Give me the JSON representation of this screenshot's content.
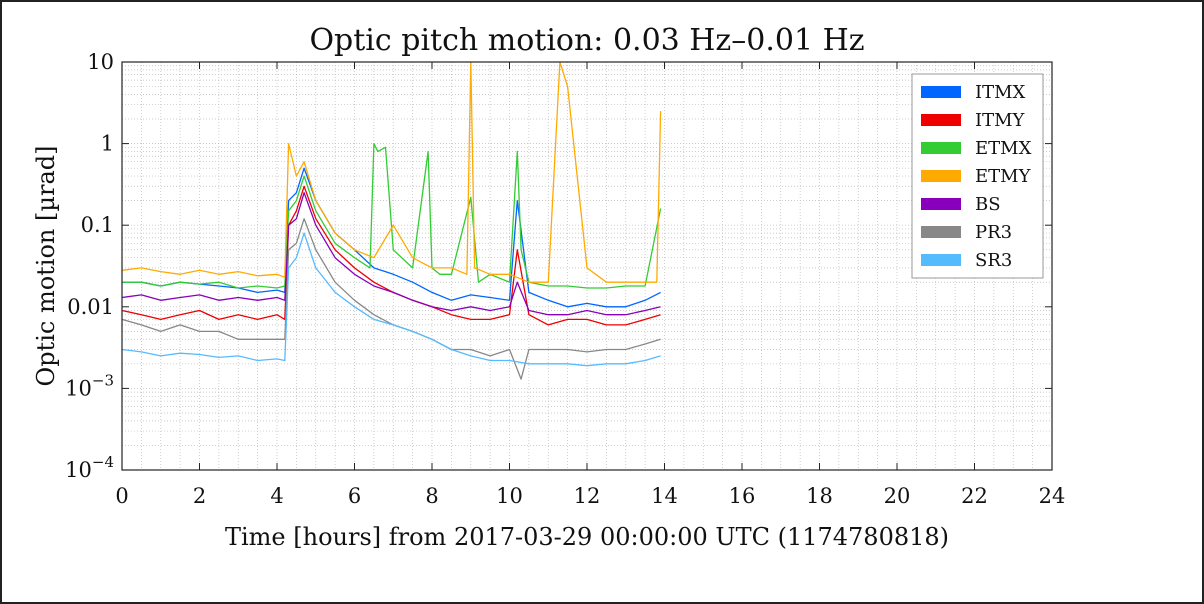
{
  "chart_data": {
    "type": "line",
    "title": "Optic pitch motion: 0.03 Hz–0.01 Hz",
    "xlabel": "Time [hours] from 2017-03-29 00:00:00 UTC (1174780818)",
    "ylabel": "Optic motion [µrad]",
    "x_scale": "linear",
    "y_scale": "log",
    "xlim": [
      0,
      24
    ],
    "ylim": [
      0.0001,
      10
    ],
    "x_ticks": [
      0,
      2,
      4,
      6,
      8,
      10,
      12,
      14,
      16,
      18,
      20,
      22,
      24
    ],
    "x_tick_labels": [
      "0",
      "2",
      "4",
      "6",
      "8",
      "10",
      "12",
      "14",
      "16",
      "18",
      "20",
      "22",
      "24"
    ],
    "y_ticks": [
      0.0001,
      0.001,
      0.01,
      0.1,
      1,
      10
    ],
    "y_tick_labels": [
      {
        "base": "10",
        "exp": "−4"
      },
      {
        "base": "10",
        "exp": "−3"
      },
      {
        "base": "0.01",
        "exp": ""
      },
      {
        "base": "0.1",
        "exp": ""
      },
      {
        "base": "1",
        "exp": ""
      },
      {
        "base": "10",
        "exp": ""
      }
    ],
    "grid": true,
    "legend_position": "top-right",
    "series": [
      {
        "name": "ITMX",
        "color": "#0066ff",
        "x": [
          0,
          0.5,
          1,
          1.5,
          2,
          2.5,
          3,
          3.5,
          4,
          4.2,
          4.3,
          4.5,
          4.7,
          5,
          5.5,
          6,
          6.5,
          7,
          7.5,
          8,
          8.5,
          9,
          9.5,
          10,
          10.2,
          10.5,
          11,
          11.5,
          12,
          12.5,
          13,
          13.5,
          13.9
        ],
        "y": [
          0.02,
          0.02,
          0.018,
          0.02,
          0.019,
          0.018,
          0.017,
          0.015,
          0.016,
          0.015,
          0.2,
          0.25,
          0.5,
          0.2,
          0.08,
          0.05,
          0.03,
          0.025,
          0.02,
          0.015,
          0.012,
          0.014,
          0.013,
          0.012,
          0.2,
          0.015,
          0.012,
          0.01,
          0.011,
          0.01,
          0.01,
          0.012,
          0.015
        ]
      },
      {
        "name": "ITMY",
        "color": "#ee0000",
        "x": [
          0,
          0.5,
          1,
          1.5,
          2,
          2.5,
          3,
          3.5,
          4,
          4.2,
          4.3,
          4.5,
          4.7,
          5,
          5.5,
          6,
          6.5,
          7,
          7.5,
          8,
          8.5,
          9,
          9.5,
          10,
          10.2,
          10.5,
          11,
          11.5,
          12,
          12.5,
          13,
          13.5,
          13.9
        ],
        "y": [
          0.009,
          0.008,
          0.007,
          0.008,
          0.009,
          0.007,
          0.008,
          0.007,
          0.008,
          0.007,
          0.1,
          0.15,
          0.3,
          0.12,
          0.05,
          0.03,
          0.02,
          0.015,
          0.012,
          0.01,
          0.008,
          0.007,
          0.007,
          0.008,
          0.05,
          0.008,
          0.006,
          0.007,
          0.007,
          0.006,
          0.006,
          0.007,
          0.008
        ]
      },
      {
        "name": "ETMX",
        "color": "#33cc33",
        "x": [
          0,
          0.5,
          1,
          1.5,
          2,
          2.5,
          3,
          3.5,
          4,
          4.2,
          4.3,
          4.5,
          4.7,
          5,
          5.5,
          6,
          6.4,
          6.5,
          6.6,
          6.8,
          7,
          7.5,
          7.9,
          8,
          8.2,
          8.5,
          9,
          9.2,
          9.5,
          10,
          10.2,
          10.3,
          10.5,
          11,
          11.5,
          12,
          12.5,
          13,
          13.5,
          13.9
        ],
        "y": [
          0.02,
          0.02,
          0.018,
          0.02,
          0.019,
          0.02,
          0.017,
          0.018,
          0.017,
          0.018,
          0.15,
          0.2,
          0.4,
          0.15,
          0.06,
          0.04,
          0.03,
          1,
          0.8,
          0.9,
          0.05,
          0.03,
          0.8,
          0.03,
          0.025,
          0.025,
          0.22,
          0.02,
          0.025,
          0.02,
          0.8,
          0.05,
          0.02,
          0.018,
          0.018,
          0.017,
          0.017,
          0.018,
          0.018,
          0.16
        ]
      },
      {
        "name": "ETMY",
        "color": "#ffaa00",
        "x": [
          0,
          0.5,
          1,
          1.5,
          2,
          2.5,
          3,
          3.5,
          4,
          4.2,
          4.3,
          4.5,
          4.7,
          5,
          5.5,
          6,
          6.5,
          7,
          7.5,
          8,
          8.5,
          8.9,
          9,
          9.1,
          9.5,
          10,
          10.5,
          11,
          11.3,
          11.5,
          12,
          12.5,
          13,
          13.5,
          13.8,
          13.9
        ],
        "y": [
          0.028,
          0.03,
          0.027,
          0.025,
          0.028,
          0.025,
          0.027,
          0.024,
          0.025,
          0.023,
          1,
          0.4,
          0.6,
          0.2,
          0.08,
          0.05,
          0.04,
          0.1,
          0.04,
          0.03,
          0.03,
          0.025,
          10,
          0.03,
          0.025,
          0.025,
          0.02,
          0.02,
          10,
          5,
          0.03,
          0.02,
          0.02,
          0.02,
          0.02,
          2.5
        ]
      },
      {
        "name": "BS",
        "color": "#8800bb",
        "x": [
          0,
          0.5,
          1,
          1.5,
          2,
          2.5,
          3,
          3.5,
          4,
          4.2,
          4.3,
          4.5,
          4.7,
          5,
          5.5,
          6,
          6.5,
          7,
          7.5,
          8,
          8.5,
          9,
          9.5,
          10,
          10.2,
          10.5,
          11,
          11.5,
          12,
          12.5,
          13,
          13.5,
          13.9
        ],
        "y": [
          0.013,
          0.014,
          0.012,
          0.013,
          0.014,
          0.012,
          0.013,
          0.012,
          0.013,
          0.012,
          0.1,
          0.12,
          0.25,
          0.1,
          0.04,
          0.025,
          0.018,
          0.015,
          0.012,
          0.01,
          0.009,
          0.01,
          0.009,
          0.01,
          0.02,
          0.009,
          0.008,
          0.008,
          0.009,
          0.008,
          0.008,
          0.009,
          0.01
        ]
      },
      {
        "name": "PR3",
        "color": "#888888",
        "x": [
          0,
          0.5,
          1,
          1.5,
          2,
          2.5,
          3,
          3.5,
          4,
          4.2,
          4.3,
          4.5,
          4.7,
          5,
          5.5,
          6,
          6.5,
          7,
          7.5,
          8,
          8.5,
          9,
          9.5,
          10,
          10.3,
          10.5,
          11,
          11.5,
          12,
          12.5,
          13,
          13.5,
          13.9
        ],
        "y": [
          0.007,
          0.006,
          0.005,
          0.006,
          0.005,
          0.005,
          0.004,
          0.004,
          0.004,
          0.004,
          0.05,
          0.06,
          0.12,
          0.05,
          0.02,
          0.012,
          0.008,
          0.006,
          0.005,
          0.004,
          0.003,
          0.003,
          0.0025,
          0.003,
          0.0013,
          0.003,
          0.003,
          0.003,
          0.0028,
          0.003,
          0.003,
          0.0035,
          0.004
        ]
      },
      {
        "name": "SR3",
        "color": "#55bbff",
        "x": [
          0,
          0.5,
          1,
          1.5,
          2,
          2.5,
          3,
          3.5,
          4,
          4.2,
          4.3,
          4.5,
          4.7,
          5,
          5.5,
          6,
          6.5,
          7,
          7.5,
          8,
          8.5,
          9,
          9.5,
          10,
          10.5,
          11,
          11.5,
          12,
          12.5,
          13,
          13.5,
          13.9
        ],
        "y": [
          0.003,
          0.0028,
          0.0025,
          0.0027,
          0.0026,
          0.0024,
          0.0025,
          0.0022,
          0.0023,
          0.0022,
          0.03,
          0.04,
          0.08,
          0.03,
          0.015,
          0.01,
          0.007,
          0.006,
          0.005,
          0.004,
          0.003,
          0.0025,
          0.0022,
          0.0022,
          0.002,
          0.002,
          0.002,
          0.0019,
          0.002,
          0.002,
          0.0022,
          0.0025
        ]
      }
    ]
  }
}
